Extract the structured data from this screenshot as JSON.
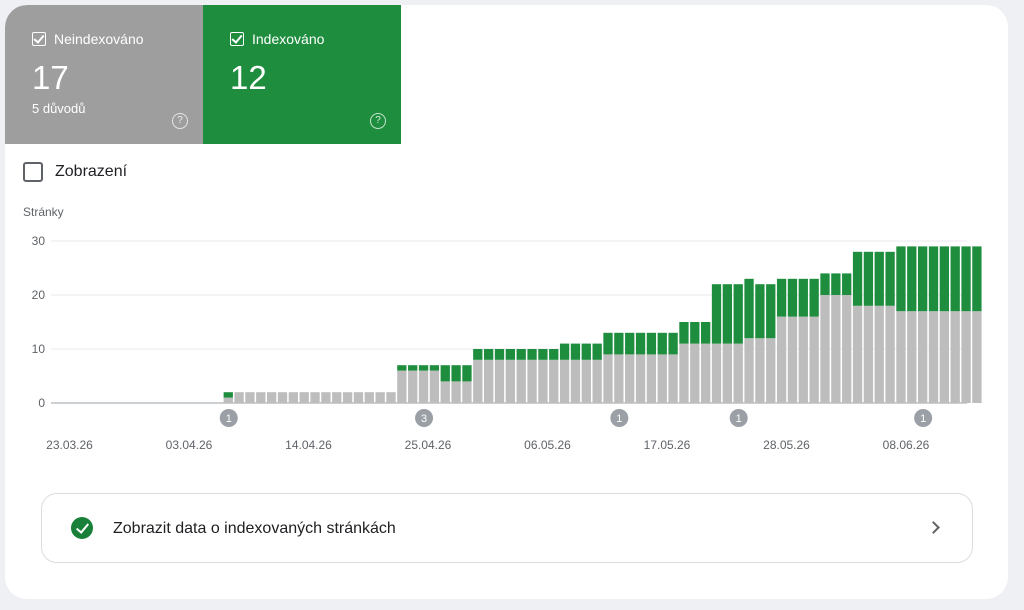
{
  "tiles": {
    "not_indexed": {
      "label": "Neindexováno",
      "count": "17",
      "sub": "5 důvodů",
      "help": "?",
      "checked": true,
      "color": "#9e9e9e"
    },
    "indexed": {
      "label": "Indexováno",
      "count": "12",
      "help": "?",
      "checked": true,
      "color": "#1e8e3e"
    }
  },
  "views_toggle": {
    "label": "Zobrazení",
    "checked": false
  },
  "action_row": {
    "label": "Zobrazit data o indexovaných stránkách",
    "status_icon": "check-circle-icon",
    "arrow_icon": "chevron-right-icon",
    "accent": "#188038"
  },
  "chart_data": {
    "type": "bar",
    "stacked": true,
    "ylabel": "Stránky",
    "ylim": [
      0,
      30
    ],
    "yticks": [
      "0",
      "10",
      "20",
      "30"
    ],
    "xtick_labels": [
      "23.03.26",
      "03.04.26",
      "14.04.26",
      "25.04.26",
      "06.05.26",
      "17.05.26",
      "28.05.26",
      "08.06.26"
    ],
    "grid": true,
    "annotations": [
      {
        "date_index": 16,
        "text": "1"
      },
      {
        "date_index": 34,
        "text": "3"
      },
      {
        "date_index": 52,
        "text": "1"
      },
      {
        "date_index": 63,
        "text": "1"
      },
      {
        "date_index": 80,
        "text": "1"
      }
    ],
    "series": [
      {
        "name": "Neindexováno",
        "color": "#bdbdbd",
        "values": [
          0,
          0,
          0,
          0,
          0,
          0,
          0,
          0,
          0,
          0,
          0,
          0,
          0,
          0,
          0,
          0,
          1,
          2,
          2,
          2,
          2,
          2,
          2,
          2,
          2,
          2,
          2,
          2,
          2,
          2,
          2,
          2,
          6,
          6,
          6,
          6,
          4,
          4,
          4,
          8,
          8,
          8,
          8,
          8,
          8,
          8,
          8,
          8,
          8,
          8,
          8,
          9,
          9,
          9,
          9,
          9,
          9,
          9,
          11,
          11,
          11,
          11,
          11,
          11,
          12,
          12,
          12,
          16,
          16,
          16,
          16,
          20,
          20,
          20,
          18,
          18,
          18,
          18,
          17,
          17,
          17,
          17,
          17,
          17,
          17,
          17
        ]
      },
      {
        "name": "Indexováno",
        "color": "#1e8e3e",
        "values": [
          0,
          0,
          0,
          0,
          0,
          0,
          0,
          0,
          0,
          0,
          0,
          0,
          0,
          0,
          0,
          0,
          1,
          0,
          0,
          0,
          0,
          0,
          0,
          0,
          0,
          0,
          0,
          0,
          0,
          0,
          0,
          0,
          1,
          1,
          1,
          1,
          3,
          3,
          3,
          2,
          2,
          2,
          2,
          2,
          2,
          2,
          2,
          3,
          3,
          3,
          3,
          4,
          4,
          4,
          4,
          4,
          4,
          4,
          4,
          4,
          4,
          11,
          11,
          11,
          11,
          10,
          10,
          7,
          7,
          7,
          7,
          4,
          4,
          4,
          10,
          10,
          10,
          10,
          12,
          12,
          12,
          12,
          12,
          12,
          12,
          12
        ]
      }
    ]
  }
}
